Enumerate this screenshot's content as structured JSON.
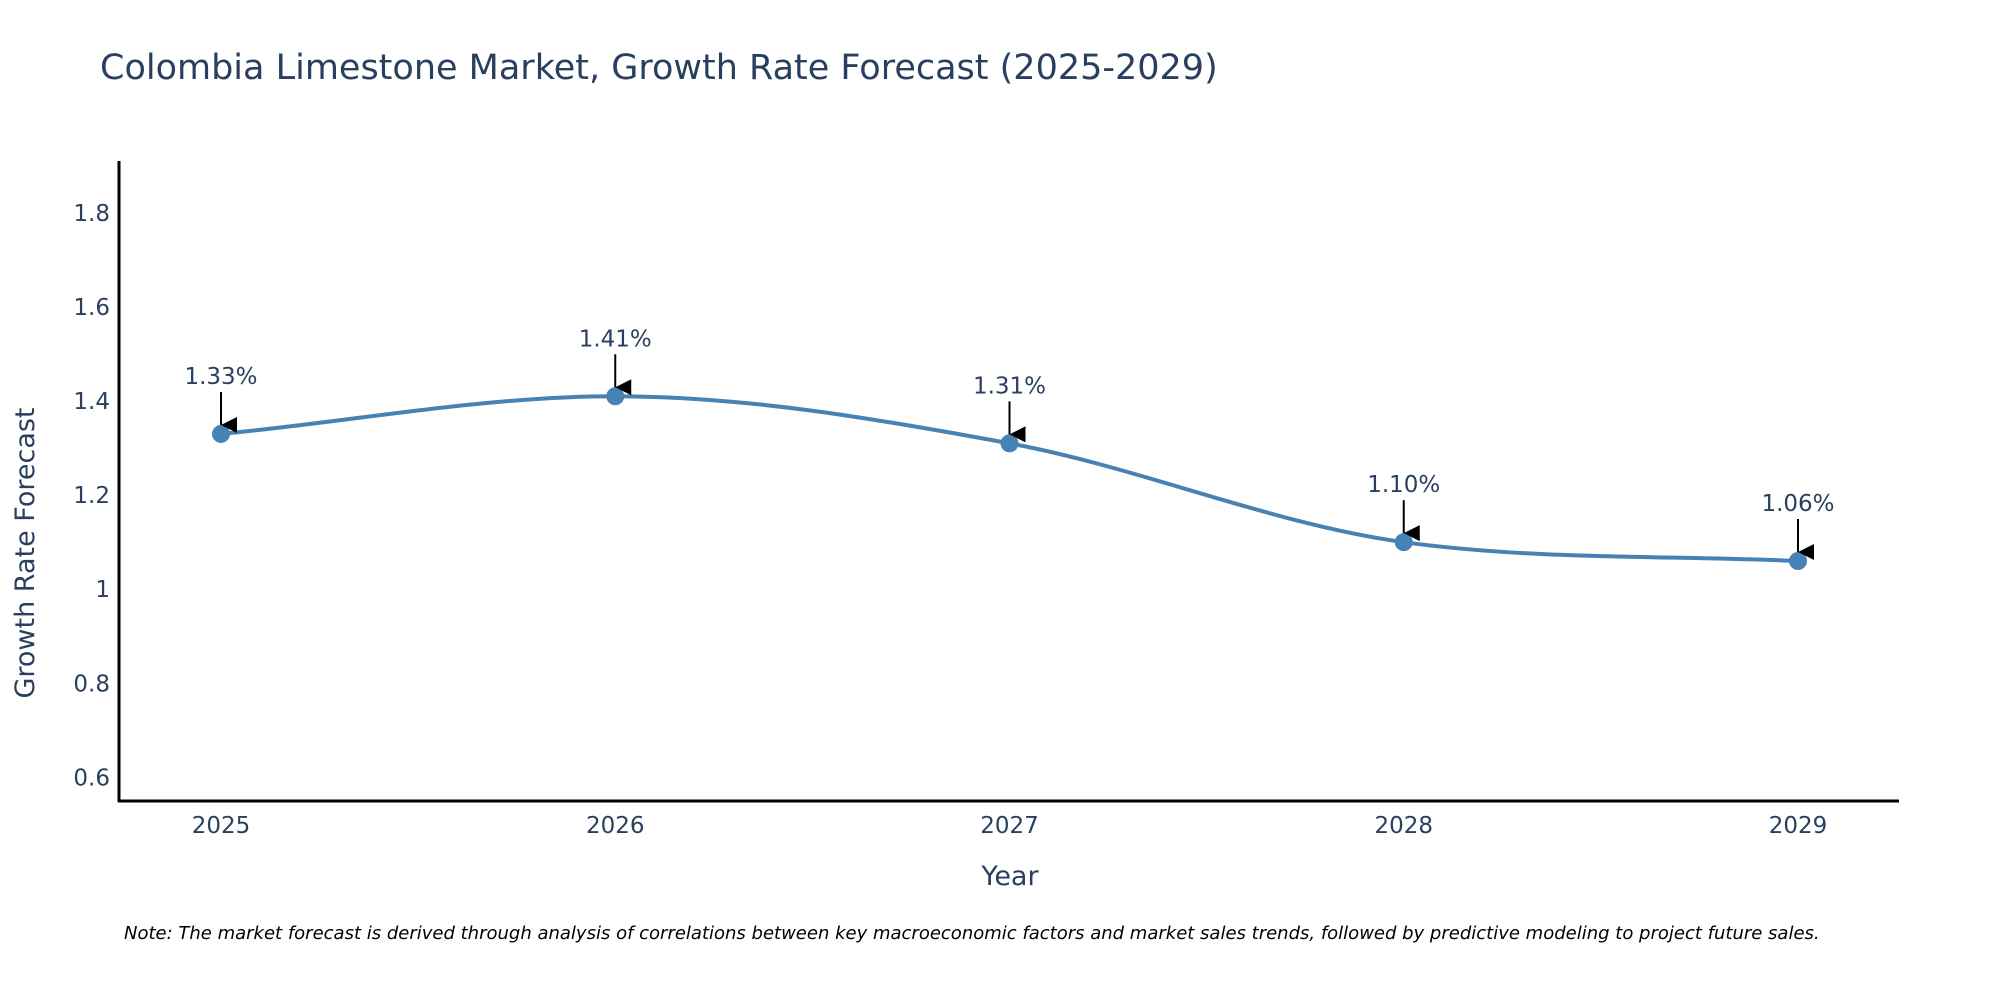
{
  "chart_data": {
    "type": "line",
    "title": "Colombia Limestone Market, Growth Rate Forecast (2025-2029)",
    "xlabel": "Year",
    "ylabel": "Growth Rate Forecast",
    "categories": [
      "2025",
      "2026",
      "2027",
      "2028",
      "2029"
    ],
    "values": [
      1.33,
      1.41,
      1.31,
      1.1,
      1.06
    ],
    "data_labels": [
      "1.33%",
      "1.41%",
      "1.31%",
      "1.10%",
      "1.06%"
    ],
    "ylim": [
      0.55,
      1.91
    ],
    "y_ticks": [
      0.6,
      0.8,
      1.0,
      1.2,
      1.4,
      1.6,
      1.8
    ],
    "y_tick_labels": [
      "0.6",
      "0.8",
      "1",
      "1.2",
      "1.4",
      "1.6",
      "1.8"
    ],
    "grid": false,
    "line_shape": "spline",
    "series_color": "#4682b4",
    "marker_color": "#4682b4",
    "arrow_color": "#000000",
    "text_color": "#2a3f5f",
    "axis_color": "#000000",
    "note": "Note: The market forecast is derived through analysis of correlations between key macroeconomic factors and market sales trends, followed by predictive modeling to project future sales."
  }
}
